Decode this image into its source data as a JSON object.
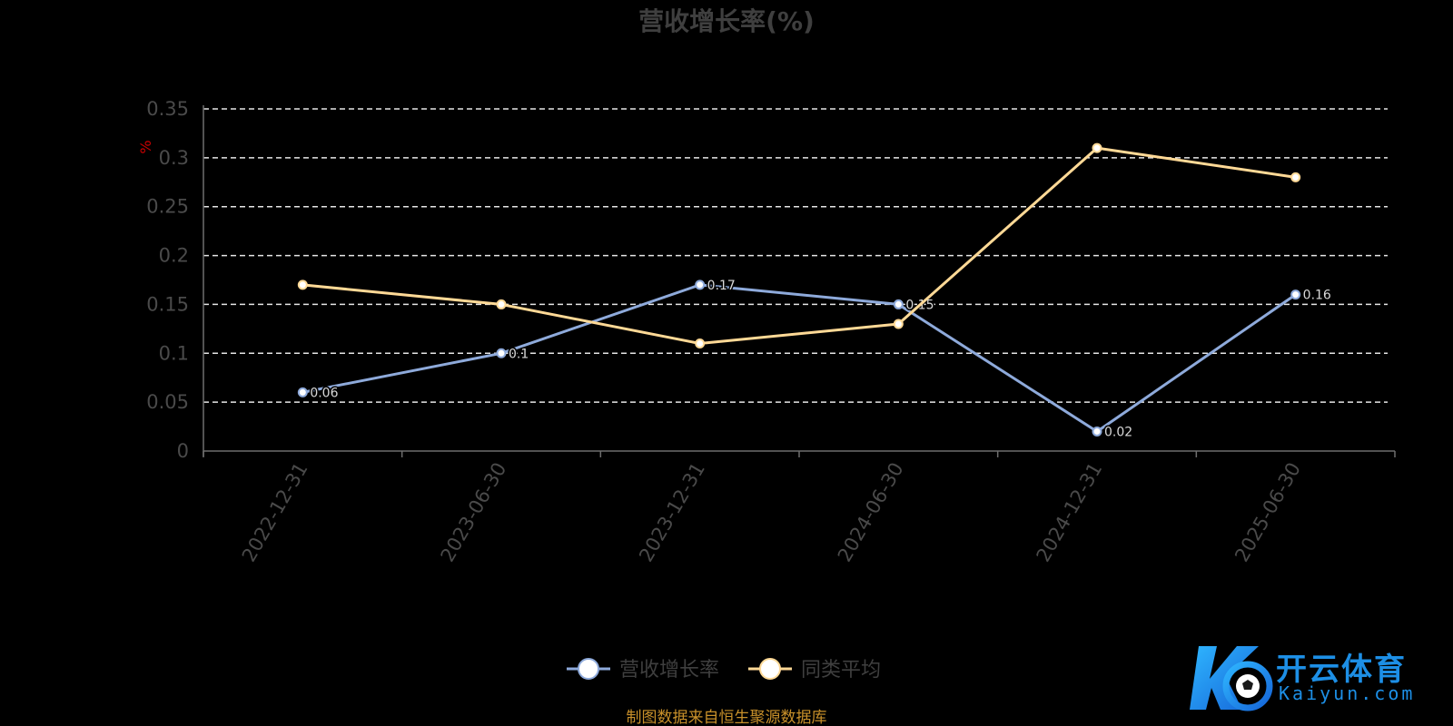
{
  "chart_data": {
    "type": "line",
    "title": "营收增长率(%)",
    "ylabel": "%",
    "xlabel": "",
    "categories": [
      "2022-12-31",
      "2023-06-30",
      "2023-12-31",
      "2024-06-30",
      "2024-12-31",
      "2025-06-30"
    ],
    "ylim": [
      0,
      0.35
    ],
    "yticks": [
      "0",
      "0.05",
      "0.1",
      "0.15",
      "0.2",
      "0.25",
      "0.3",
      "0.35"
    ],
    "ytick_values": [
      0,
      0.05,
      0.1,
      0.15,
      0.2,
      0.25,
      0.3,
      0.35
    ],
    "grid": true,
    "legend_position": "bottom-center",
    "series": [
      {
        "name": "营收增长率",
        "values": [
          0.06,
          0.1,
          0.17,
          0.15,
          0.02,
          0.16
        ],
        "color": "#8eaadb"
      },
      {
        "name": "同类平均",
        "values": [
          0.17,
          0.15,
          0.11,
          0.13,
          0.31,
          0.28
        ],
        "color": "#ffd996"
      }
    ]
  },
  "footer": {
    "source": "制图数据来自恒生聚源数据库"
  },
  "watermark": {
    "brand": "开云体育",
    "domain": "Kaiyun.com"
  }
}
